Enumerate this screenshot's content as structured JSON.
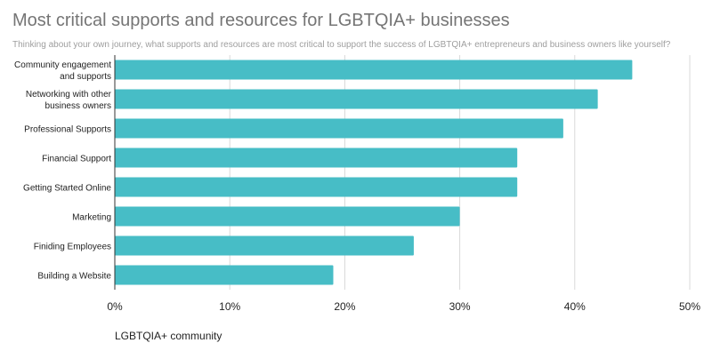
{
  "chart_data": {
    "type": "bar",
    "orientation": "horizontal",
    "title": "Most critical supports and resources for LGBTQIA+ businesses",
    "subtitle": "Thinking about your own journey, what supports and resources are most critical to support the success of LGBTQIA+ entrepreneurs and business owners like yourself?",
    "categories": [
      [
        "Community engagement",
        "and supports"
      ],
      [
        "Networking with other",
        "business owners"
      ],
      [
        "Professional Supports"
      ],
      [
        "Financial Support"
      ],
      [
        "Getting Started Online"
      ],
      [
        "Marketing"
      ],
      [
        "Finiding Employees"
      ],
      [
        "Building a Website"
      ]
    ],
    "series": [
      {
        "name": "LGBTQIA+ community",
        "values": [
          45,
          42,
          39,
          35,
          35,
          30,
          26,
          19
        ],
        "color": "#47bdc6"
      }
    ],
    "xlim": [
      0,
      50
    ],
    "xticks": [
      0,
      10,
      20,
      30,
      40,
      50
    ],
    "xtick_labels": [
      "0%",
      "10%",
      "20%",
      "30%",
      "40%",
      "50%"
    ],
    "grid": true,
    "legend_position": "bottom-left"
  }
}
